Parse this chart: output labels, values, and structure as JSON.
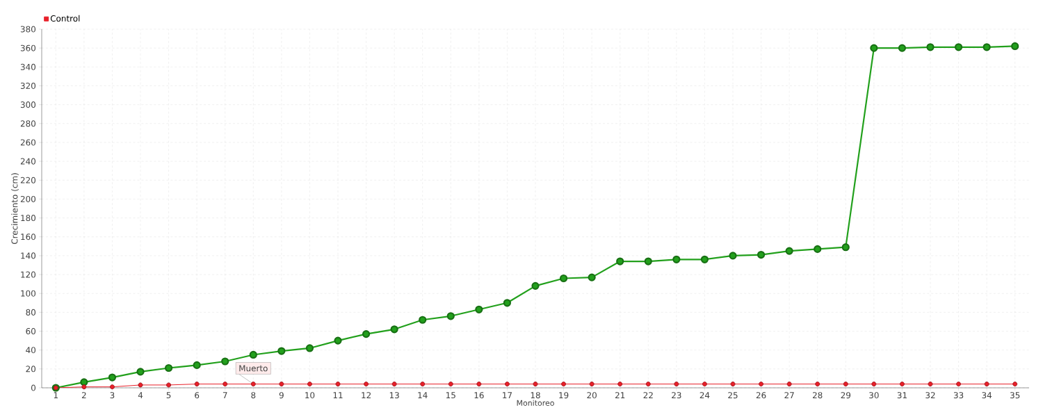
{
  "chart_data": {
    "type": "line",
    "xlabel": "Monitoreo",
    "ylabel": "Crecimiento (cm)",
    "x": [
      1,
      2,
      3,
      4,
      5,
      6,
      7,
      8,
      9,
      10,
      11,
      12,
      13,
      14,
      15,
      16,
      17,
      18,
      19,
      20,
      21,
      22,
      23,
      24,
      25,
      26,
      27,
      28,
      29,
      30,
      31,
      32,
      33,
      34,
      35
    ],
    "series": [
      {
        "color": "#22a01c",
        "values": [
          0,
          6,
          11,
          17,
          21,
          24,
          28,
          35,
          39,
          42,
          50,
          57,
          62,
          72,
          76,
          83,
          90,
          108,
          116,
          117,
          134,
          134,
          136,
          136,
          140,
          141,
          145,
          147,
          149,
          360,
          360,
          361,
          361,
          361,
          362
        ]
      },
      {
        "name": "Control",
        "color": "#e8202a",
        "values": [
          0,
          1,
          1,
          3,
          3,
          4,
          4,
          4,
          4,
          4,
          4,
          4,
          4,
          4,
          4,
          4,
          4,
          4,
          4,
          4,
          4,
          4,
          4,
          4,
          4,
          4,
          4,
          4,
          4,
          4,
          4,
          4,
          4,
          4,
          4
        ]
      }
    ],
    "annotations": [
      {
        "text": "Muerto",
        "x": 8,
        "y": 4
      }
    ],
    "xlim": [
      0.5,
      35.5
    ],
    "ylim": [
      0,
      380
    ],
    "xticks": [
      1,
      2,
      3,
      4,
      5,
      6,
      7,
      8,
      9,
      10,
      11,
      12,
      13,
      14,
      15,
      16,
      17,
      18,
      19,
      20,
      21,
      22,
      23,
      24,
      25,
      26,
      27,
      28,
      29,
      30,
      31,
      32,
      33,
      34,
      35
    ],
    "yticks": [
      0,
      20,
      40,
      60,
      80,
      100,
      120,
      140,
      160,
      180,
      200,
      220,
      240,
      260,
      280,
      300,
      320,
      340,
      360,
      380
    ],
    "grid": true,
    "legend": "top left",
    "marker": "circle",
    "line_style": "solid"
  }
}
